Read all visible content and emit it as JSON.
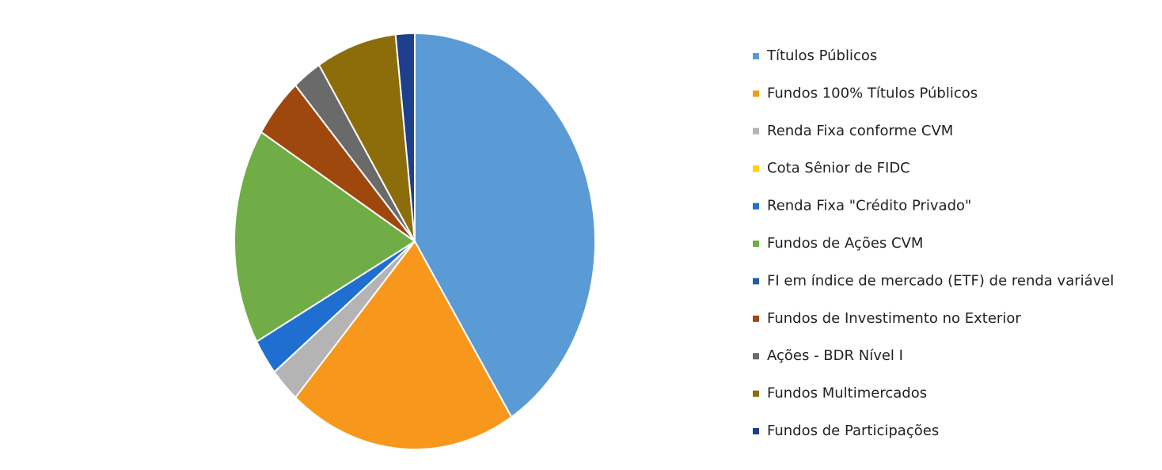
{
  "chart_data": {
    "type": "pie",
    "categories": [
      "Títulos Públicos",
      "Fundos 100% Títulos Públicos",
      "Renda Fixa conforme CVM",
      "Cota Sênior de FIDC",
      "Renda Fixa \"Crédito Privado\"",
      "Fundos de Ações CVM",
      "FI em índice de mercado (ETF) de renda variável",
      "Fundos de Investimento no Exterior",
      "Ações - BDR Nível I",
      "Fundos Multimercados",
      "Fundos de Participações"
    ],
    "values": [
      41,
      20.5,
      2.7,
      0,
      2.8,
      16.8,
      0,
      4.7,
      2.6,
      7.2,
      1.7
    ],
    "colors": [
      "#5b9bd5",
      "#f7981d",
      "#b4b4b4",
      "#ffd200",
      "#1f6fd0",
      "#70ad47",
      "#1f5fa8",
      "#9e480e",
      "#6a6a6a",
      "#8c6d0a",
      "#1d3f8c"
    ],
    "legend": "right"
  }
}
